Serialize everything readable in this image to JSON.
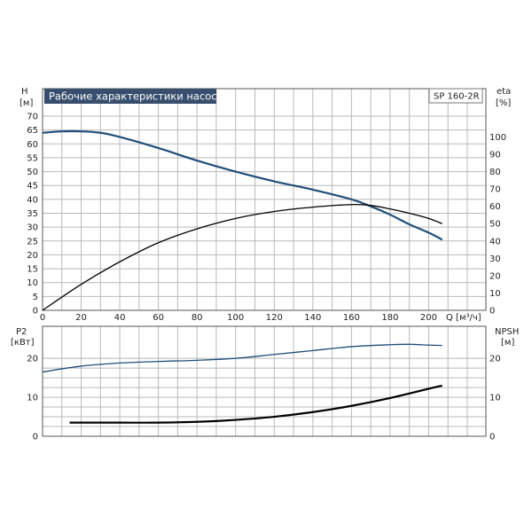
{
  "chart_data": [
    {
      "type": "line",
      "title": "Рабочие характеристики насоса",
      "model": "SP 160-2R",
      "ylabel": "H",
      "yunit": "[м]",
      "y2label": "eta",
      "y2unit": "[%]",
      "xlabel": "Q [м³/ч]",
      "xlim": [
        0,
        220
      ],
      "ylim": [
        0,
        70
      ],
      "y2lim": [
        0,
        112
      ],
      "x_ticks": [
        "0",
        "20",
        "40",
        "60",
        "80",
        "100",
        "120",
        "140",
        "160",
        "180",
        "200"
      ],
      "y_ticks": [
        "0",
        "5",
        "10",
        "15",
        "20",
        "25",
        "30",
        "35",
        "40",
        "45",
        "50",
        "55",
        "60",
        "65",
        "70"
      ],
      "y2_ticks": [
        "0",
        "10",
        "20",
        "30",
        "40",
        "50",
        "60",
        "70",
        "80",
        "90",
        "100"
      ],
      "grid": true,
      "series": [
        {
          "axis": "left",
          "color": "#1f4e79",
          "x": [
            0,
            10,
            20,
            30,
            40,
            60,
            80,
            100,
            120,
            140,
            160,
            170,
            180,
            190,
            200,
            207
          ],
          "y": [
            64,
            64.5,
            64.5,
            64,
            62.5,
            58.5,
            54,
            50,
            46.5,
            43.5,
            40,
            37.5,
            34.5,
            31,
            28,
            25.5
          ]
        },
        {
          "axis": "right",
          "color": "#000000",
          "x": [
            0,
            20,
            40,
            60,
            80,
            100,
            120,
            140,
            160,
            170,
            180,
            190,
            200,
            207
          ],
          "y": [
            0,
            15,
            28,
            39,
            47,
            53,
            57,
            59.5,
            61,
            60.5,
            58.5,
            56,
            53,
            50
          ]
        }
      ]
    },
    {
      "type": "line",
      "ylabel": "P2",
      "yunit": "[кВт]",
      "y2label": "NPSH",
      "y2unit": "[м]",
      "xlim": [
        0,
        220
      ],
      "ylim": [
        0,
        28
      ],
      "y2lim": [
        0,
        28
      ],
      "y_ticks": [
        "0",
        "10",
        "20"
      ],
      "y2_ticks": [
        "0",
        "10",
        "20"
      ],
      "grid": true,
      "series": [
        {
          "axis": "left",
          "color": "#1f4e79",
          "x": [
            0,
            20,
            40,
            60,
            80,
            100,
            120,
            140,
            160,
            180,
            190,
            200,
            207
          ],
          "y": [
            16.5,
            18,
            18.8,
            19.2,
            19.5,
            20,
            21,
            22,
            23,
            23.5,
            23.6,
            23.4,
            23.3
          ]
        },
        {
          "axis": "right",
          "color": "#000000",
          "x": [
            14,
            40,
            60,
            80,
            100,
            120,
            140,
            160,
            180,
            200,
            207
          ],
          "y": [
            3.5,
            3.5,
            3.5,
            3.7,
            4.2,
            5,
            6.2,
            7.8,
            9.8,
            12.2,
            13
          ]
        }
      ]
    }
  ]
}
